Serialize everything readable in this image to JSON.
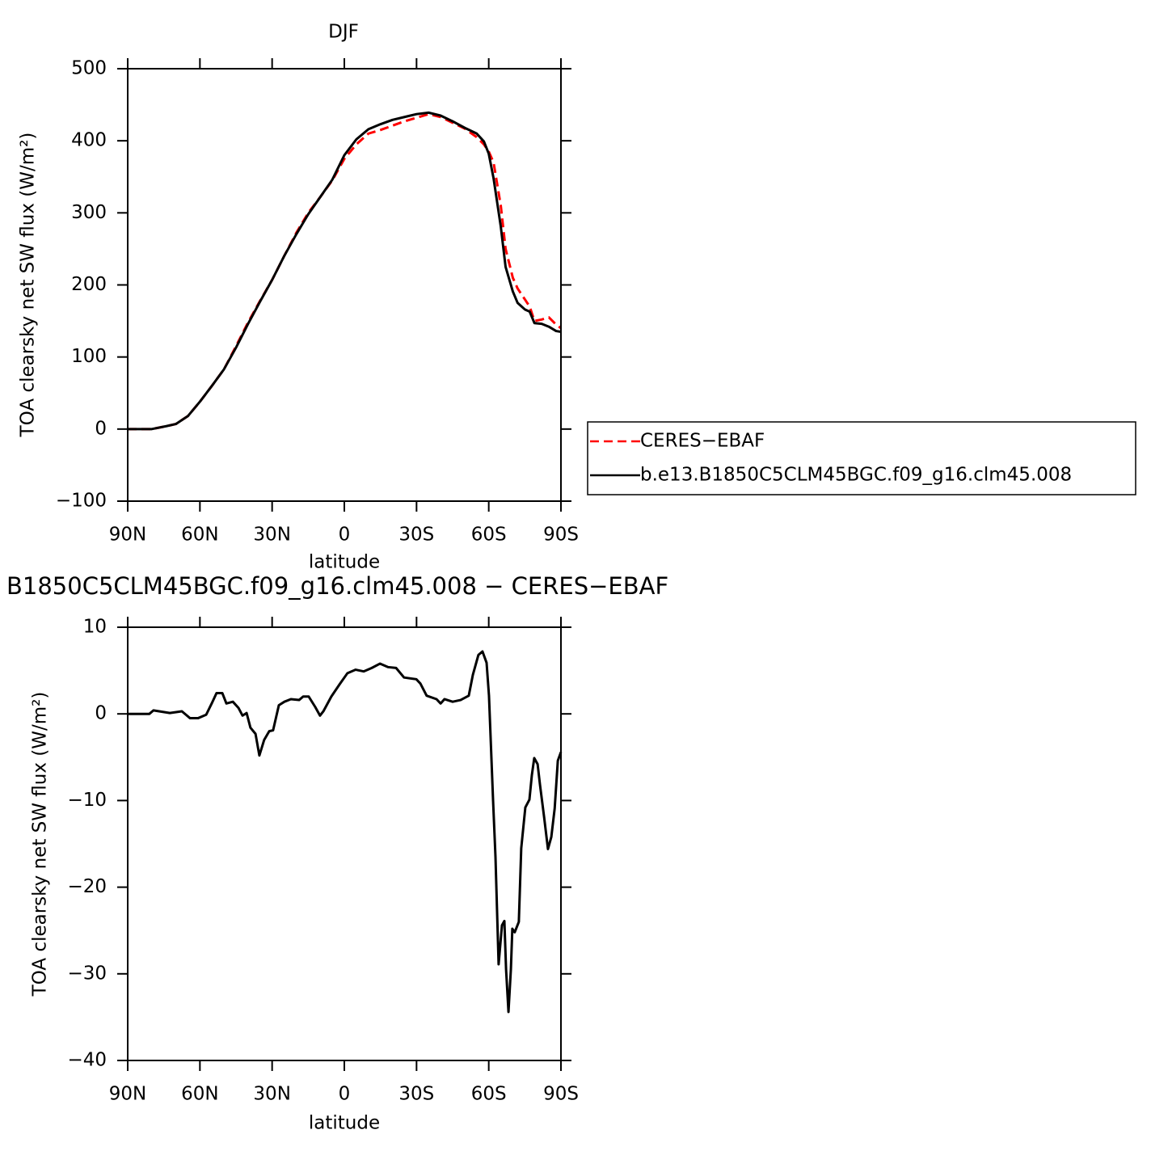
{
  "chart_data": [
    {
      "type": "line",
      "title": "DJF",
      "xlabel": "latitude",
      "ylabel": "TOA clearsky net SW flux (W/m²)",
      "x": [
        90,
        80,
        74,
        70,
        65,
        60,
        55,
        50,
        45,
        40,
        35,
        30,
        25,
        20,
        15,
        10,
        5,
        0,
        -5,
        -10,
        -15,
        -20,
        -25,
        -30,
        -35,
        -40,
        -45,
        -50,
        -55,
        -58,
        -60,
        -62,
        -65,
        -67,
        -70,
        -72,
        -75,
        -77,
        -79,
        -82,
        -85,
        -88,
        -90
      ],
      "series": [
        {
          "name": "CERES−EBAF",
          "color": "#ff0000",
          "dash": true,
          "values": [
            0,
            0,
            4,
            7,
            18,
            38,
            60,
            83,
            115,
            148,
            178,
            207,
            240,
            272,
            300,
            322,
            345,
            375,
            395,
            410,
            415,
            421,
            427,
            432,
            437,
            433,
            425,
            417,
            405,
            395,
            385,
            370,
            310,
            250,
            210,
            195,
            180,
            170,
            150,
            152,
            155,
            145,
            140
          ]
        },
        {
          "name": "b.e13.B1850C5CLM45BGC.f09_g16.clm45.008",
          "color": "#000000",
          "dash": false,
          "values": [
            0,
            0,
            4,
            7,
            18,
            38,
            60,
            83,
            113,
            146,
            177,
            207,
            240,
            270,
            298,
            322,
            346,
            380,
            402,
            416,
            423,
            429,
            433,
            437,
            439,
            435,
            427,
            418,
            410,
            399,
            382,
            348,
            281,
            225,
            191,
            175,
            166,
            163,
            147,
            146,
            142,
            136,
            135
          ]
        }
      ],
      "xlim": [
        90,
        -90
      ],
      "xticks": [
        {
          "value": 90,
          "label": "90N"
        },
        {
          "value": 60,
          "label": "60N"
        },
        {
          "value": 30,
          "label": "30N"
        },
        0,
        {
          "value": -30,
          "label": "30S"
        },
        {
          "value": -60,
          "label": "60S"
        },
        {
          "value": -90,
          "label": "90S"
        }
      ],
      "ylim": [
        -100,
        500
      ],
      "yticks": [
        {
          "value": -100,
          "label": "−100"
        },
        0,
        100,
        200,
        300,
        400,
        500
      ]
    },
    {
      "type": "line",
      "title": "B1850C5CLM45BGC.f09_g16.clm45.008 − CERES−EBAF",
      "xlabel": "latitude",
      "ylabel": "TOA clearsky net SW flux (W/m²)",
      "x": [
        90,
        81,
        79.3,
        72.5,
        67.5,
        65.8,
        64.1,
        60.8,
        57.4,
        55.1,
        53.1,
        50.7,
        49,
        46.3,
        44,
        42.3,
        40.6,
        39,
        36.9,
        35.3,
        33.3,
        31.2,
        29.6,
        27.2,
        24.9,
        22.2,
        18.8,
        17.1,
        14.8,
        12.1,
        10.1,
        8.7,
        5.4,
        2,
        -1.3,
        -4.7,
        -8.1,
        -11.4,
        -14.8,
        -18.1,
        -21.5,
        -24.8,
        -29.9,
        -31.6,
        -34.2,
        -38.3,
        -40,
        -41.6,
        -45,
        -48.3,
        -51.7,
        -53.4,
        -55.7,
        -57.4,
        -59.1,
        -60.1,
        -61.8,
        -62.8,
        -64.1,
        -65.5,
        -66.5,
        -67.2,
        -68.2,
        -69.2,
        -69.8,
        -70.8,
        -72.5,
        -73.5,
        -75.2,
        -76.9,
        -77.9,
        -78.9,
        -80.3,
        -81.3,
        -83,
        -84.6,
        -86,
        -87.4,
        -88.7,
        -90
      ],
      "values": [
        0,
        0,
        0.4,
        0.1,
        0.3,
        -0.1,
        -0.5,
        -0.5,
        -0.1,
        1.2,
        2.4,
        2.4,
        1.2,
        1.4,
        0.7,
        -0.2,
        0.1,
        -1.6,
        -2.3,
        -4.8,
        -3,
        -2,
        -1.9,
        1,
        1.4,
        1.7,
        1.6,
        2,
        2,
        0.8,
        -0.2,
        0.3,
        2,
        3.4,
        4.7,
        5.1,
        4.9,
        5.3,
        5.8,
        5.4,
        5.3,
        4.2,
        4,
        3.5,
        2.1,
        1.7,
        1.2,
        1.7,
        1.4,
        1.6,
        2.1,
        4.5,
        6.8,
        7.2,
        5.9,
        2.1,
        -10,
        -16.5,
        -28.9,
        -24.4,
        -23.9,
        -29.5,
        -34.4,
        -29.5,
        -24.8,
        -25.2,
        -24,
        -15.5,
        -10.8,
        -9.9,
        -7.1,
        -5.1,
        -5.8,
        -8.2,
        -11.9,
        -15.6,
        -14.2,
        -10.9,
        -5.4,
        -4.4
      ],
      "color": "#000000",
      "xlim": [
        90,
        -90
      ],
      "xticks": [
        {
          "value": 90,
          "label": "90N"
        },
        {
          "value": 60,
          "label": "60N"
        },
        {
          "value": 30,
          "label": "30N"
        },
        0,
        {
          "value": -30,
          "label": "30S"
        },
        {
          "value": -60,
          "label": "60S"
        },
        {
          "value": -90,
          "label": "90S"
        }
      ],
      "ylim": [
        -40,
        10
      ],
      "yticks": [
        {
          "value": -40,
          "label": "−40"
        },
        {
          "value": -30,
          "label": "−30"
        },
        {
          "value": -20,
          "label": "−20"
        },
        {
          "value": -10,
          "label": "−10"
        },
        0,
        10
      ]
    }
  ]
}
